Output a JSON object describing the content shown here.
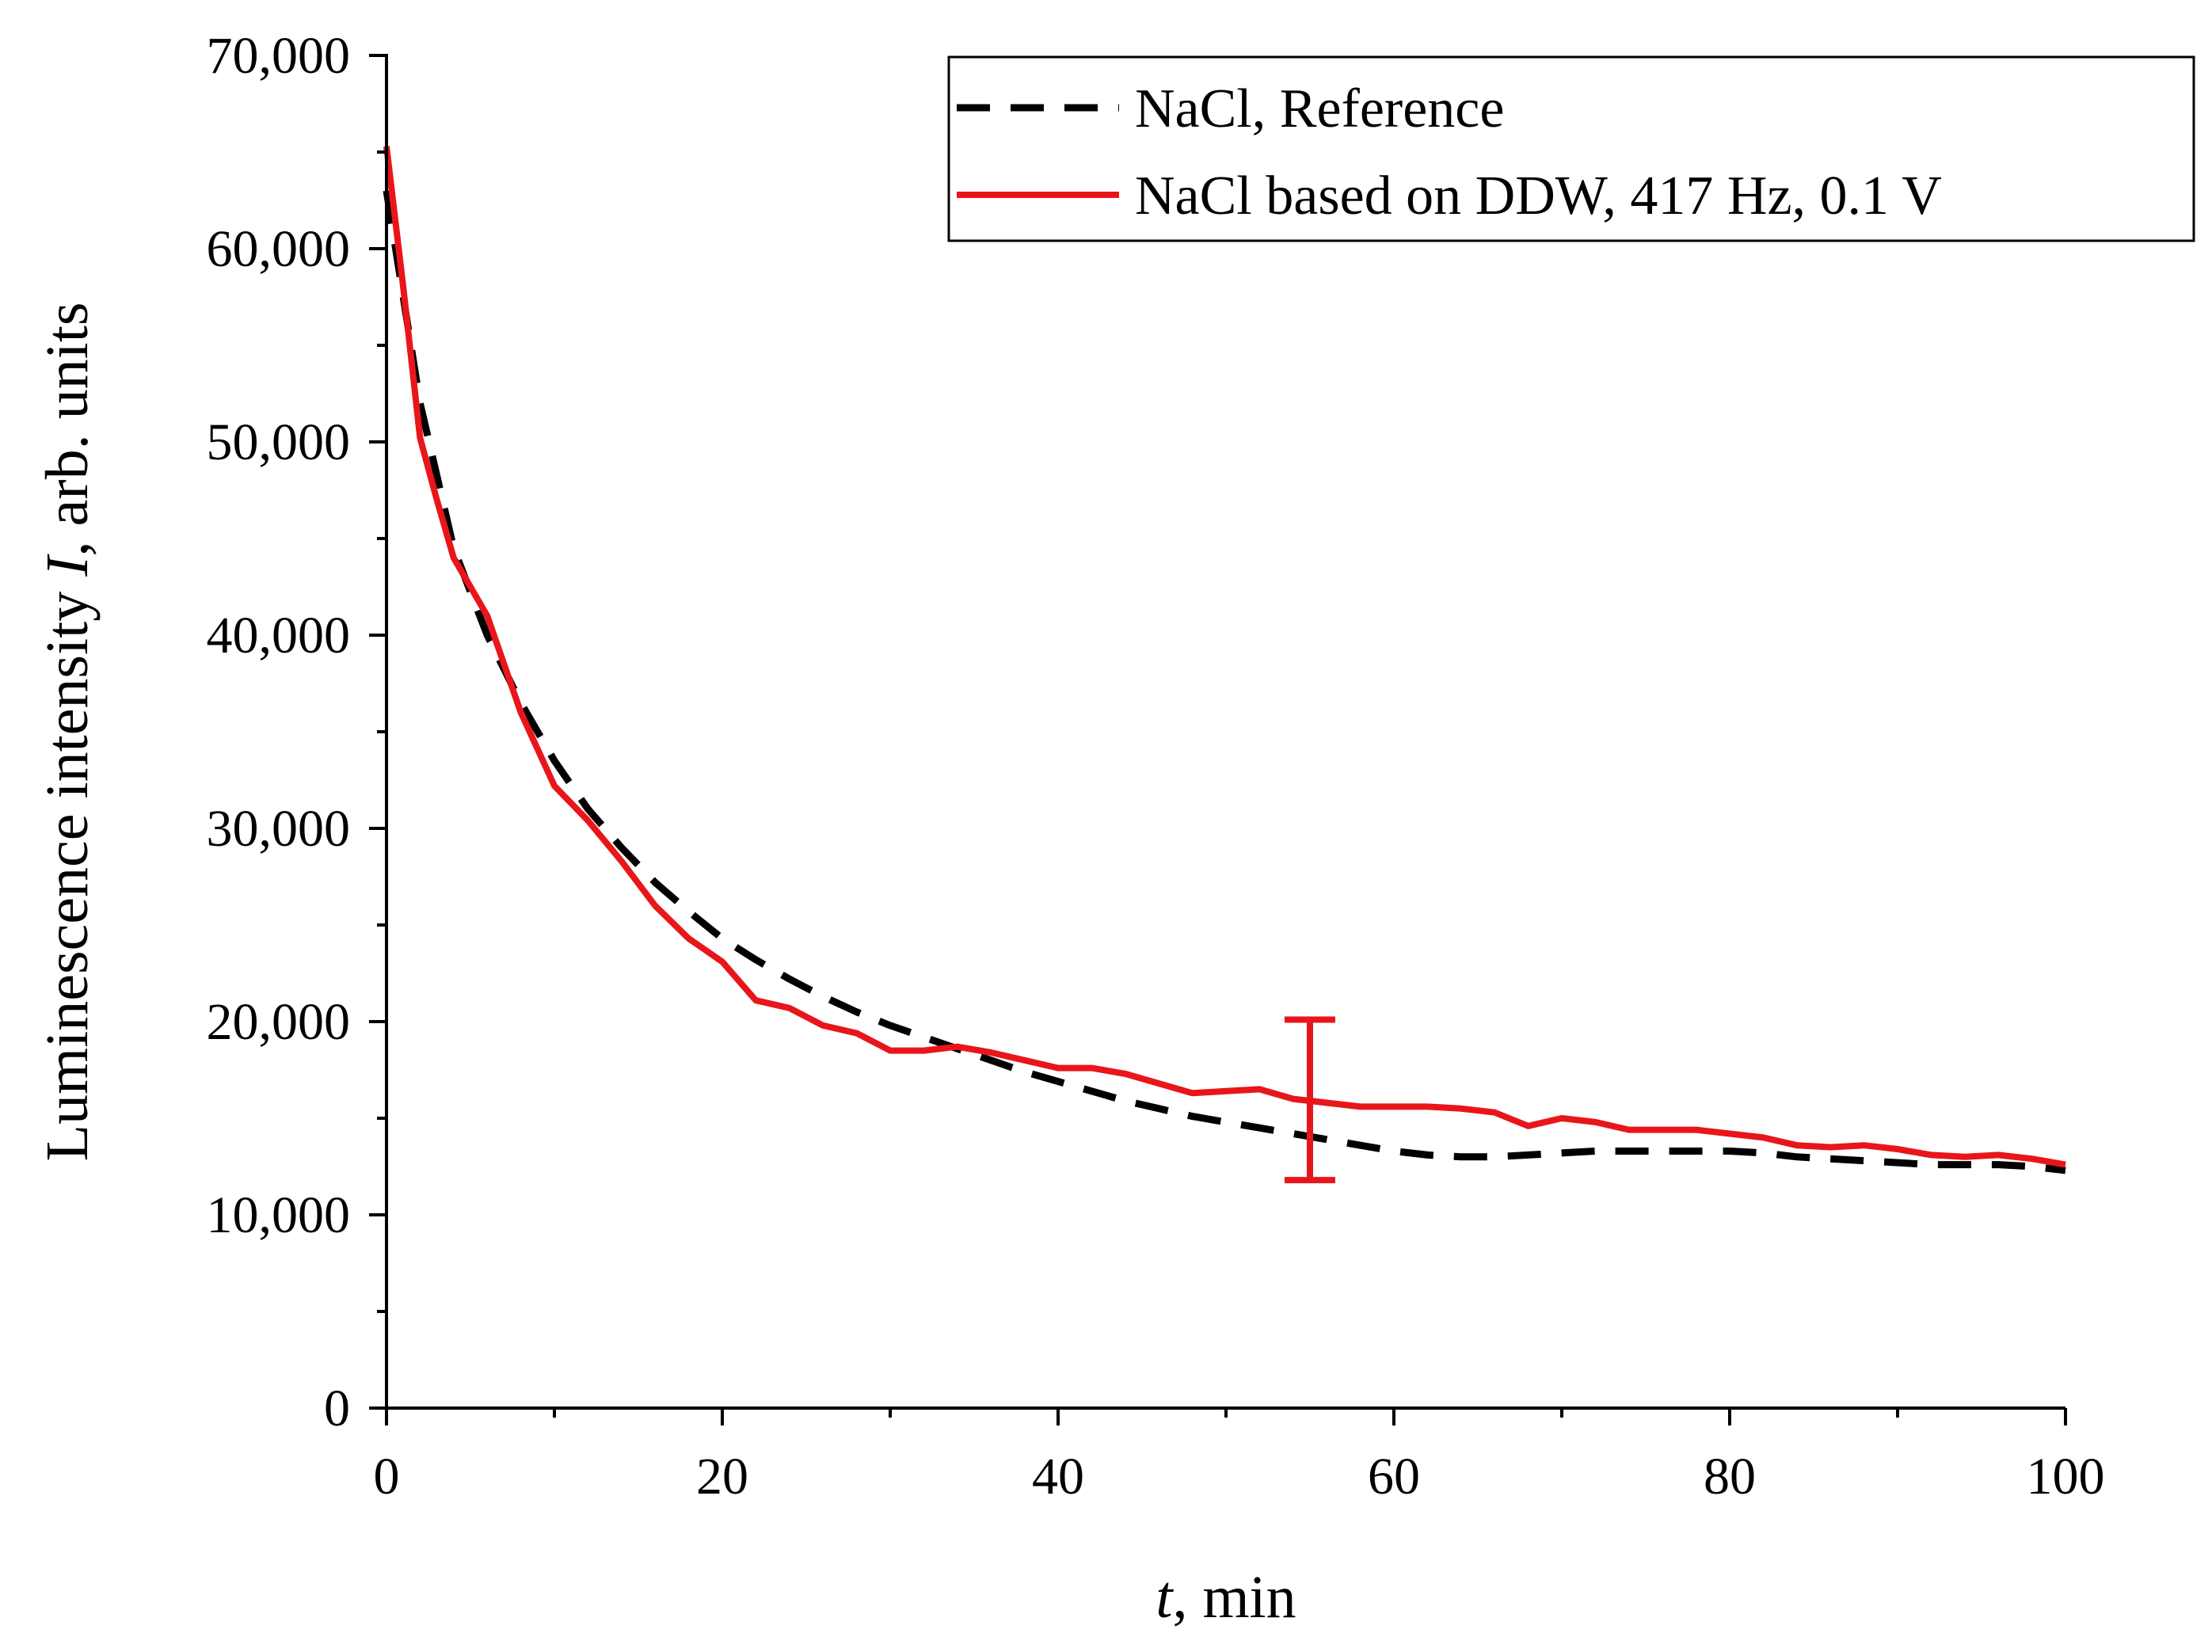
{
  "chart_data": {
    "type": "line",
    "title": "",
    "xlabel": {
      "var": "t",
      "rest": ", min"
    },
    "ylabel": {
      "prefix": "Luminescence intensity ",
      "var": "I",
      "suffix": ", arb. units"
    },
    "xlim": [
      0,
      100
    ],
    "ylim": [
      0,
      70000
    ],
    "x_ticks": [
      0,
      20,
      40,
      60,
      80,
      100
    ],
    "x_tick_labels": [
      "0",
      "20",
      "40",
      "60",
      "80",
      "100"
    ],
    "y_ticks": [
      0,
      10000,
      20000,
      30000,
      40000,
      50000,
      60000,
      70000
    ],
    "y_tick_labels": [
      "0",
      "10,000",
      "20,000",
      "30,000",
      "40,000",
      "50,000",
      "60,000",
      "70,000"
    ],
    "grid": false,
    "legend_position": "top-right",
    "series": [
      {
        "name": "NaCl, Reference",
        "style": "dashed",
        "color": "#000000",
        "x": [
          0,
          2,
          4,
          6,
          8,
          10,
          12,
          14,
          16,
          18,
          20,
          22,
          24,
          26,
          28,
          30,
          32,
          34,
          36,
          38,
          40,
          42,
          44,
          46,
          48,
          50,
          52,
          54,
          56,
          58,
          60,
          62,
          64,
          66,
          68,
          70,
          72,
          74,
          76,
          78,
          80,
          82,
          84,
          86,
          88,
          90,
          92,
          94,
          96,
          98,
          100
        ],
        "y": [
          63000,
          52000,
          44500,
          40000,
          36500,
          33500,
          31000,
          29000,
          27200,
          25700,
          24300,
          23200,
          22200,
          21300,
          20500,
          19800,
          19200,
          18600,
          18000,
          17400,
          16900,
          16400,
          15900,
          15500,
          15100,
          14800,
          14500,
          14200,
          13900,
          13600,
          13300,
          13100,
          13000,
          13000,
          13100,
          13200,
          13300,
          13300,
          13300,
          13300,
          13300,
          13200,
          13000,
          12900,
          12800,
          12700,
          12600,
          12600,
          12600,
          12500,
          12300
        ]
      },
      {
        "name": "NaCl based on DDW, 417 Hz, 0.1 V",
        "style": "solid",
        "color": "#e8161b",
        "x": [
          0,
          1,
          2,
          3,
          4,
          6,
          8,
          10,
          12,
          14,
          16,
          18,
          20,
          22,
          24,
          26,
          28,
          30,
          32,
          34,
          36,
          38,
          40,
          42,
          44,
          46,
          48,
          50,
          52,
          54,
          56,
          58,
          60,
          62,
          64,
          66,
          68,
          70,
          72,
          74,
          76,
          78,
          80,
          82,
          84,
          86,
          88,
          90,
          92,
          94,
          96,
          98,
          100
        ],
        "y": [
          65300,
          58000,
          50200,
          47000,
          44000,
          41000,
          36000,
          32200,
          30400,
          28300,
          26000,
          24300,
          23100,
          21100,
          20700,
          19800,
          19400,
          18500,
          18500,
          18700,
          18400,
          18000,
          17600,
          17600,
          17300,
          16800,
          16300,
          16400,
          16500,
          16000,
          15800,
          15600,
          15600,
          15600,
          15500,
          15300,
          14600,
          15000,
          14800,
          14400,
          14400,
          14400,
          14200,
          14000,
          13600,
          13500,
          13600,
          13400,
          13100,
          13000,
          13100,
          12900,
          12600
        ]
      }
    ],
    "error_bar": {
      "x": 55,
      "y_low": 11800,
      "y_high": 20100,
      "color": "#e8161b"
    }
  }
}
